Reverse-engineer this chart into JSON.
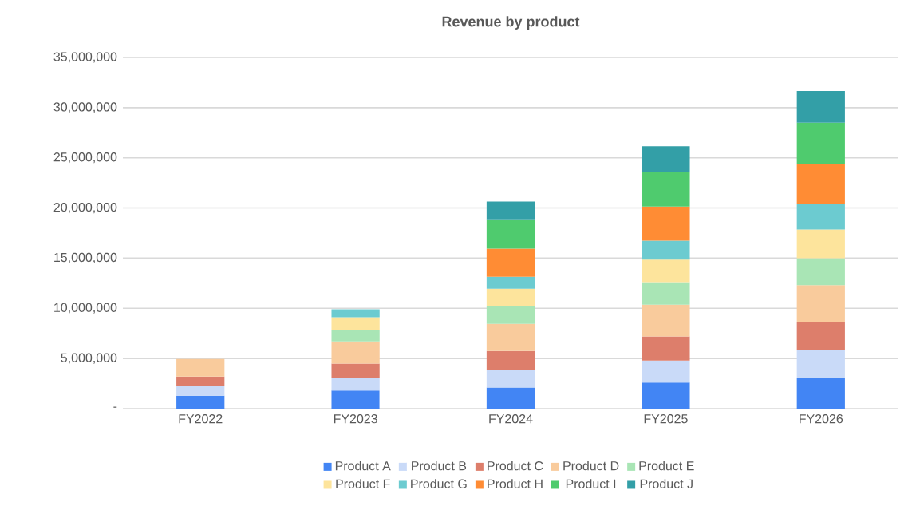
{
  "chart_data": {
    "type": "bar",
    "stacked": true,
    "title": "Revenue by product",
    "categories": [
      "FY2022",
      "FY2023",
      "FY2024",
      "FY2025",
      "FY2026"
    ],
    "series": [
      {
        "name": "Product A",
        "color": "#4285f4",
        "values": [
          1300000,
          1800000,
          2100000,
          2600000,
          3100000
        ]
      },
      {
        "name": "Product B",
        "color": "#c9daf8",
        "values": [
          950000,
          1300000,
          1750000,
          2200000,
          2700000
        ]
      },
      {
        "name": "Product C",
        "color": "#dd7e6b",
        "values": [
          950000,
          1400000,
          1900000,
          2400000,
          2850000
        ]
      },
      {
        "name": "Product D",
        "color": "#f9cb9c",
        "values": [
          1750000,
          2200000,
          2700000,
          3150000,
          3650000
        ]
      },
      {
        "name": "Product E",
        "color": "#a9e5b5",
        "values": [
          null,
          1100000,
          1750000,
          2250000,
          2700000
        ]
      },
      {
        "name": "Product F",
        "color": "#fde49c",
        "values": [
          null,
          1300000,
          1750000,
          2250000,
          2850000
        ]
      },
      {
        "name": "Product G",
        "color": "#6ccbd0",
        "values": [
          null,
          800000,
          1200000,
          1900000,
          2550000
        ]
      },
      {
        "name": "Product H",
        "color": "#ff8c34",
        "values": [
          null,
          null,
          2800000,
          3400000,
          3950000
        ]
      },
      {
        "name": "Product I",
        "color": "#4fcb6e",
        "values": [
          null,
          null,
          2850000,
          3450000,
          4150000
        ]
      },
      {
        "name": "Product J",
        "color": "#339fa7",
        "values": [
          null,
          null,
          1850000,
          2550000,
          3150000
        ]
      }
    ],
    "ylim": [
      0,
      35000000
    ],
    "yticks": [
      {
        "value": 0,
        "label": "-"
      },
      {
        "value": 5000000,
        "label": "5,000,000"
      },
      {
        "value": 10000000,
        "label": "10,000,000"
      },
      {
        "value": 15000000,
        "label": "15,000,000"
      },
      {
        "value": 20000000,
        "label": "20,000,000"
      },
      {
        "value": 25000000,
        "label": "25,000,000"
      },
      {
        "value": 30000000,
        "label": "30,000,000"
      },
      {
        "value": 35000000,
        "label": "35,000,000"
      }
    ],
    "grid": "y",
    "legend": "bottom"
  }
}
